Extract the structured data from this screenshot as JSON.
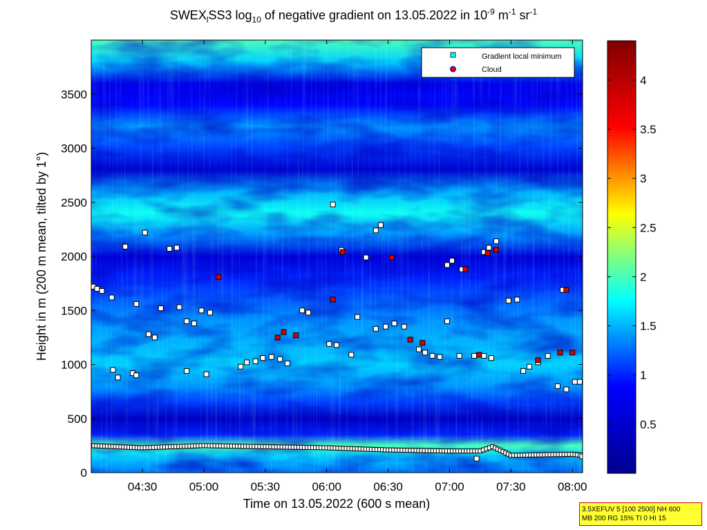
{
  "title": {
    "part1": "SWEX",
    "sub1": "l",
    "part2": "SS3 log",
    "sub2": "10",
    "part3": " of negative gradient on 13.05.2022 in 10",
    "sup1": "-9",
    "part4": " m",
    "sup2": "-1",
    "part5": " sr",
    "sup3": "-1"
  },
  "info_box": {
    "line1": "3.5XEFUV 5 [100 2500] NH 600",
    "line2": "MB 200 RG 15% TI 0 HI 15"
  },
  "colors": {
    "background_min": "#00008f",
    "colormap": [
      "#00008f",
      "#0000ff",
      "#00ffff",
      "#ffff00",
      "#ff0000",
      "#800000"
    ],
    "minimum_marker_fill": "#ffffff",
    "cloud_marker_fill": "#dd0000"
  },
  "chart_data": {
    "type": "heatmap",
    "title": "SWEX_lSS3 log10 of negative gradient on 13.05.2022 in 10^-9 m^-1 sr^-1",
    "xlabel": "Time on 13.05.2022 (600 s mean)",
    "ylabel": "Height in m (200 m mean, tilted by 1°)",
    "x_ticks": [
      "04:30",
      "05:00",
      "05:30",
      "06:00",
      "06:30",
      "07:00",
      "07:30",
      "08:00"
    ],
    "x_tick_hours": [
      4.5,
      5.0,
      5.5,
      6.0,
      6.5,
      7.0,
      7.5,
      8.0
    ],
    "xlim_hours": [
      4.083,
      8.083
    ],
    "y_ticks": [
      0,
      500,
      1000,
      1500,
      2000,
      2500,
      3000,
      3500
    ],
    "ylim": [
      0,
      4000
    ],
    "colorbar": {
      "ticks": [
        0.5,
        1,
        1.5,
        2,
        2.5,
        3,
        3.5,
        4
      ],
      "tick_labels": [
        "0.5",
        "1",
        "1.5",
        "2",
        "2.5",
        "3",
        "3.5",
        "4"
      ],
      "range": [
        0,
        4.4
      ]
    },
    "legend": {
      "placement": "top-right",
      "entries": [
        {
          "label": "Gradient local minimum",
          "marker": "square",
          "color": "#00ffff"
        },
        {
          "label": "Cloud",
          "marker": "circle",
          "color": "#dd0000"
        }
      ]
    },
    "layers": [
      {
        "y": 0,
        "value": 1.3
      },
      {
        "y": 150,
        "value": 1.6
      },
      {
        "y": 250,
        "value": 2.0
      },
      {
        "y": 350,
        "value": 1.0
      },
      {
        "y": 500,
        "value": 0.4
      },
      {
        "y": 650,
        "value": 1.1
      },
      {
        "y": 800,
        "value": 1.4
      },
      {
        "y": 1000,
        "value": 1.6
      },
      {
        "y": 1200,
        "value": 1.5
      },
      {
        "y": 1400,
        "value": 1.4
      },
      {
        "y": 1600,
        "value": 1.2
      },
      {
        "y": 1800,
        "value": 1.0
      },
      {
        "y": 2000,
        "value": 0.6
      },
      {
        "y": 2200,
        "value": 1.4
      },
      {
        "y": 2400,
        "value": 1.8
      },
      {
        "y": 2600,
        "value": 1.5
      },
      {
        "y": 2800,
        "value": 0.5
      },
      {
        "y": 3000,
        "value": 1.1
      },
      {
        "y": 3200,
        "value": 1.4
      },
      {
        "y": 3400,
        "value": 0.9
      },
      {
        "y": 3600,
        "value": 0.7
      },
      {
        "y": 3800,
        "value": 1.6
      },
      {
        "y": 4000,
        "value": 2.0
      }
    ],
    "ground_minimum_line": {
      "x_hours": [
        4.083,
        4.5,
        5.0,
        5.5,
        6.0,
        6.5,
        7.0,
        7.25,
        7.35,
        7.5,
        8.0,
        8.083
      ],
      "y": [
        250,
        230,
        250,
        240,
        230,
        210,
        200,
        200,
        240,
        160,
        170,
        160
      ]
    },
    "gradient_minima": [
      {
        "x": 4.1,
        "y": 1720
      },
      {
        "x": 4.13,
        "y": 1700
      },
      {
        "x": 4.17,
        "y": 1680
      },
      {
        "x": 4.25,
        "y": 1620
      },
      {
        "x": 4.26,
        "y": 950
      },
      {
        "x": 4.3,
        "y": 880
      },
      {
        "x": 4.36,
        "y": 2090
      },
      {
        "x": 4.42,
        "y": 920
      },
      {
        "x": 4.45,
        "y": 900
      },
      {
        "x": 4.45,
        "y": 1560
      },
      {
        "x": 4.52,
        "y": 2220
      },
      {
        "x": 4.55,
        "y": 1280
      },
      {
        "x": 4.6,
        "y": 1250
      },
      {
        "x": 4.65,
        "y": 1520
      },
      {
        "x": 4.72,
        "y": 2070
      },
      {
        "x": 4.78,
        "y": 2080
      },
      {
        "x": 4.8,
        "y": 1530
      },
      {
        "x": 4.86,
        "y": 1400
      },
      {
        "x": 4.86,
        "y": 940
      },
      {
        "x": 4.92,
        "y": 1380
      },
      {
        "x": 4.98,
        "y": 1500
      },
      {
        "x": 5.02,
        "y": 910
      },
      {
        "x": 5.05,
        "y": 1480
      },
      {
        "x": 5.3,
        "y": 980
      },
      {
        "x": 5.35,
        "y": 1020
      },
      {
        "x": 5.42,
        "y": 1030
      },
      {
        "x": 5.48,
        "y": 1060
      },
      {
        "x": 5.55,
        "y": 1070
      },
      {
        "x": 5.62,
        "y": 1050
      },
      {
        "x": 5.68,
        "y": 1010
      },
      {
        "x": 5.8,
        "y": 1500
      },
      {
        "x": 5.85,
        "y": 1480
      },
      {
        "x": 6.02,
        "y": 1190
      },
      {
        "x": 6.08,
        "y": 1180
      },
      {
        "x": 6.05,
        "y": 2480
      },
      {
        "x": 6.12,
        "y": 2060
      },
      {
        "x": 6.2,
        "y": 1090
      },
      {
        "x": 6.25,
        "y": 1440
      },
      {
        "x": 6.32,
        "y": 1990
      },
      {
        "x": 6.4,
        "y": 1330
      },
      {
        "x": 6.4,
        "y": 2240
      },
      {
        "x": 6.44,
        "y": 2290
      },
      {
        "x": 6.48,
        "y": 1350
      },
      {
        "x": 6.55,
        "y": 1380
      },
      {
        "x": 6.63,
        "y": 1350
      },
      {
        "x": 6.75,
        "y": 1140
      },
      {
        "x": 6.8,
        "y": 1110
      },
      {
        "x": 6.86,
        "y": 1080
      },
      {
        "x": 6.92,
        "y": 1070
      },
      {
        "x": 6.98,
        "y": 1400
      },
      {
        "x": 6.98,
        "y": 1920
      },
      {
        "x": 7.02,
        "y": 1960
      },
      {
        "x": 7.08,
        "y": 1080
      },
      {
        "x": 7.1,
        "y": 1880
      },
      {
        "x": 7.2,
        "y": 1080
      },
      {
        "x": 7.28,
        "y": 1080
      },
      {
        "x": 7.34,
        "y": 1060
      },
      {
        "x": 7.28,
        "y": 2040
      },
      {
        "x": 7.32,
        "y": 2080
      },
      {
        "x": 7.38,
        "y": 2140
      },
      {
        "x": 7.22,
        "y": 130
      },
      {
        "x": 7.48,
        "y": 1590
      },
      {
        "x": 7.55,
        "y": 1600
      },
      {
        "x": 7.6,
        "y": 940
      },
      {
        "x": 7.65,
        "y": 980
      },
      {
        "x": 7.72,
        "y": 1020
      },
      {
        "x": 7.8,
        "y": 1080
      },
      {
        "x": 7.88,
        "y": 800
      },
      {
        "x": 7.95,
        "y": 770
      },
      {
        "x": 7.92,
        "y": 1690
      },
      {
        "x": 8.02,
        "y": 840
      },
      {
        "x": 8.06,
        "y": 840
      },
      {
        "x": 8.08,
        "y": 150
      }
    ],
    "clouds": [
      {
        "x": 5.12,
        "y": 1810
      },
      {
        "x": 5.6,
        "y": 1250
      },
      {
        "x": 5.65,
        "y": 1300
      },
      {
        "x": 5.75,
        "y": 1270
      },
      {
        "x": 6.05,
        "y": 1600
      },
      {
        "x": 6.13,
        "y": 2040
      },
      {
        "x": 6.53,
        "y": 1990
      },
      {
        "x": 6.68,
        "y": 1230
      },
      {
        "x": 6.78,
        "y": 1200
      },
      {
        "x": 7.13,
        "y": 1880
      },
      {
        "x": 7.24,
        "y": 1090
      },
      {
        "x": 7.31,
        "y": 2030
      },
      {
        "x": 7.38,
        "y": 2060
      },
      {
        "x": 7.72,
        "y": 1040
      },
      {
        "x": 7.9,
        "y": 1110
      },
      {
        "x": 8.0,
        "y": 1110
      },
      {
        "x": 7.95,
        "y": 1690
      }
    ]
  }
}
